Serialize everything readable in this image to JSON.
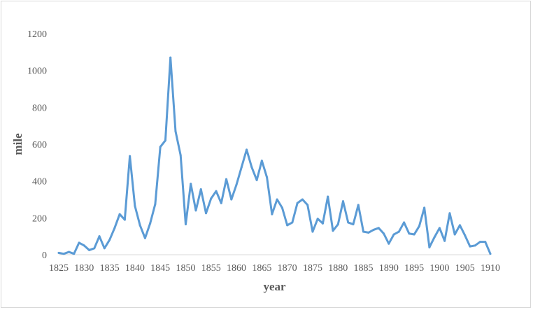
{
  "chart_data": {
    "type": "line",
    "title": "",
    "xlabel": "year",
    "ylabel": "mile",
    "xlim": [
      1825,
      1910
    ],
    "ylim": [
      0,
      1200
    ],
    "yticks": [
      0,
      200,
      400,
      600,
      800,
      1000,
      1200
    ],
    "xticks": [
      1825,
      1830,
      1835,
      1840,
      1845,
      1850,
      1855,
      1860,
      1865,
      1870,
      1875,
      1880,
      1885,
      1890,
      1895,
      1900,
      1905,
      1910
    ],
    "grid": false,
    "legend": "none",
    "line_color": "#5b9bd5",
    "series": [
      {
        "x": [
          1825,
          1826,
          1827,
          1828,
          1829,
          1830,
          1831,
          1832,
          1833,
          1834,
          1835,
          1836,
          1837,
          1838,
          1839,
          1840,
          1841,
          1842,
          1843,
          1844,
          1845,
          1846,
          1847,
          1848,
          1849,
          1850,
          1851,
          1852,
          1853,
          1854,
          1855,
          1856,
          1857,
          1858,
          1859,
          1860,
          1861,
          1862,
          1863,
          1864,
          1865,
          1866,
          1867,
          1868,
          1869,
          1870,
          1871,
          1872,
          1873,
          1874,
          1875,
          1876,
          1877,
          1878,
          1879,
          1880,
          1881,
          1882,
          1883,
          1884,
          1885,
          1886,
          1887,
          1888,
          1889,
          1890,
          1891,
          1892,
          1893,
          1894,
          1895,
          1896,
          1897,
          1898,
          1899,
          1900,
          1901,
          1902,
          1903,
          1904,
          1905,
          1906,
          1907,
          1908,
          1909,
          1910
        ],
        "values": [
          10,
          5,
          15,
          5,
          65,
          50,
          25,
          35,
          100,
          35,
          80,
          145,
          220,
          190,
          535,
          265,
          160,
          90,
          170,
          275,
          585,
          620,
          1070,
          670,
          540,
          165,
          385,
          240,
          355,
          225,
          305,
          345,
          280,
          410,
          300,
          380,
          475,
          570,
          475,
          405,
          510,
          420,
          220,
          300,
          255,
          160,
          175,
          280,
          300,
          270,
          125,
          195,
          170,
          315,
          130,
          165,
          290,
          175,
          165,
          270,
          125,
          120,
          135,
          145,
          115,
          60,
          110,
          125,
          175,
          115,
          110,
          155,
          255,
          40,
          95,
          145,
          75,
          225,
          110,
          160,
          105,
          45,
          50,
          70,
          70,
          5
        ]
      }
    ]
  }
}
